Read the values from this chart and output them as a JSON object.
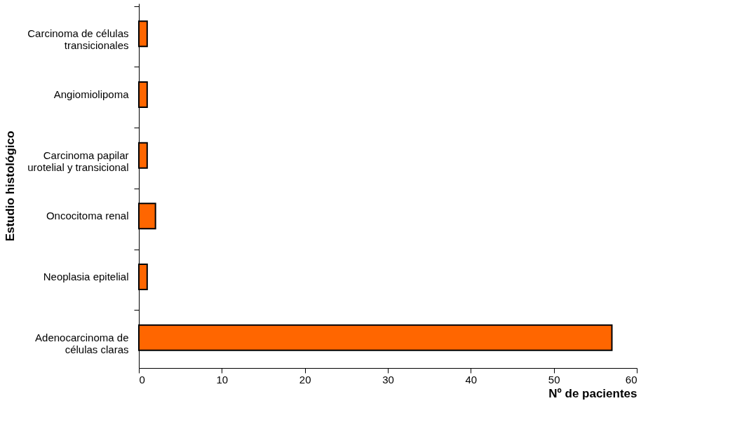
{
  "chart_data": {
    "type": "bar",
    "orientation": "horizontal",
    "xlabel": "Nº de pacientes",
    "ylabel": "Estudio histológico",
    "categories": [
      "Carcinoma de células transicionales",
      "Angiomiolipoma",
      "Carcinoma papilar urotelial y transicional",
      "Oncocitoma renal",
      "Neoplasia epitelial",
      "Adenocarcinoma de células claras"
    ],
    "values": [
      1,
      1,
      1,
      2,
      1,
      57
    ],
    "color": "#ff6600",
    "xlim": [
      0,
      60
    ],
    "xticks": [
      0,
      10,
      20,
      30,
      40,
      50,
      60
    ],
    "grid": false
  }
}
